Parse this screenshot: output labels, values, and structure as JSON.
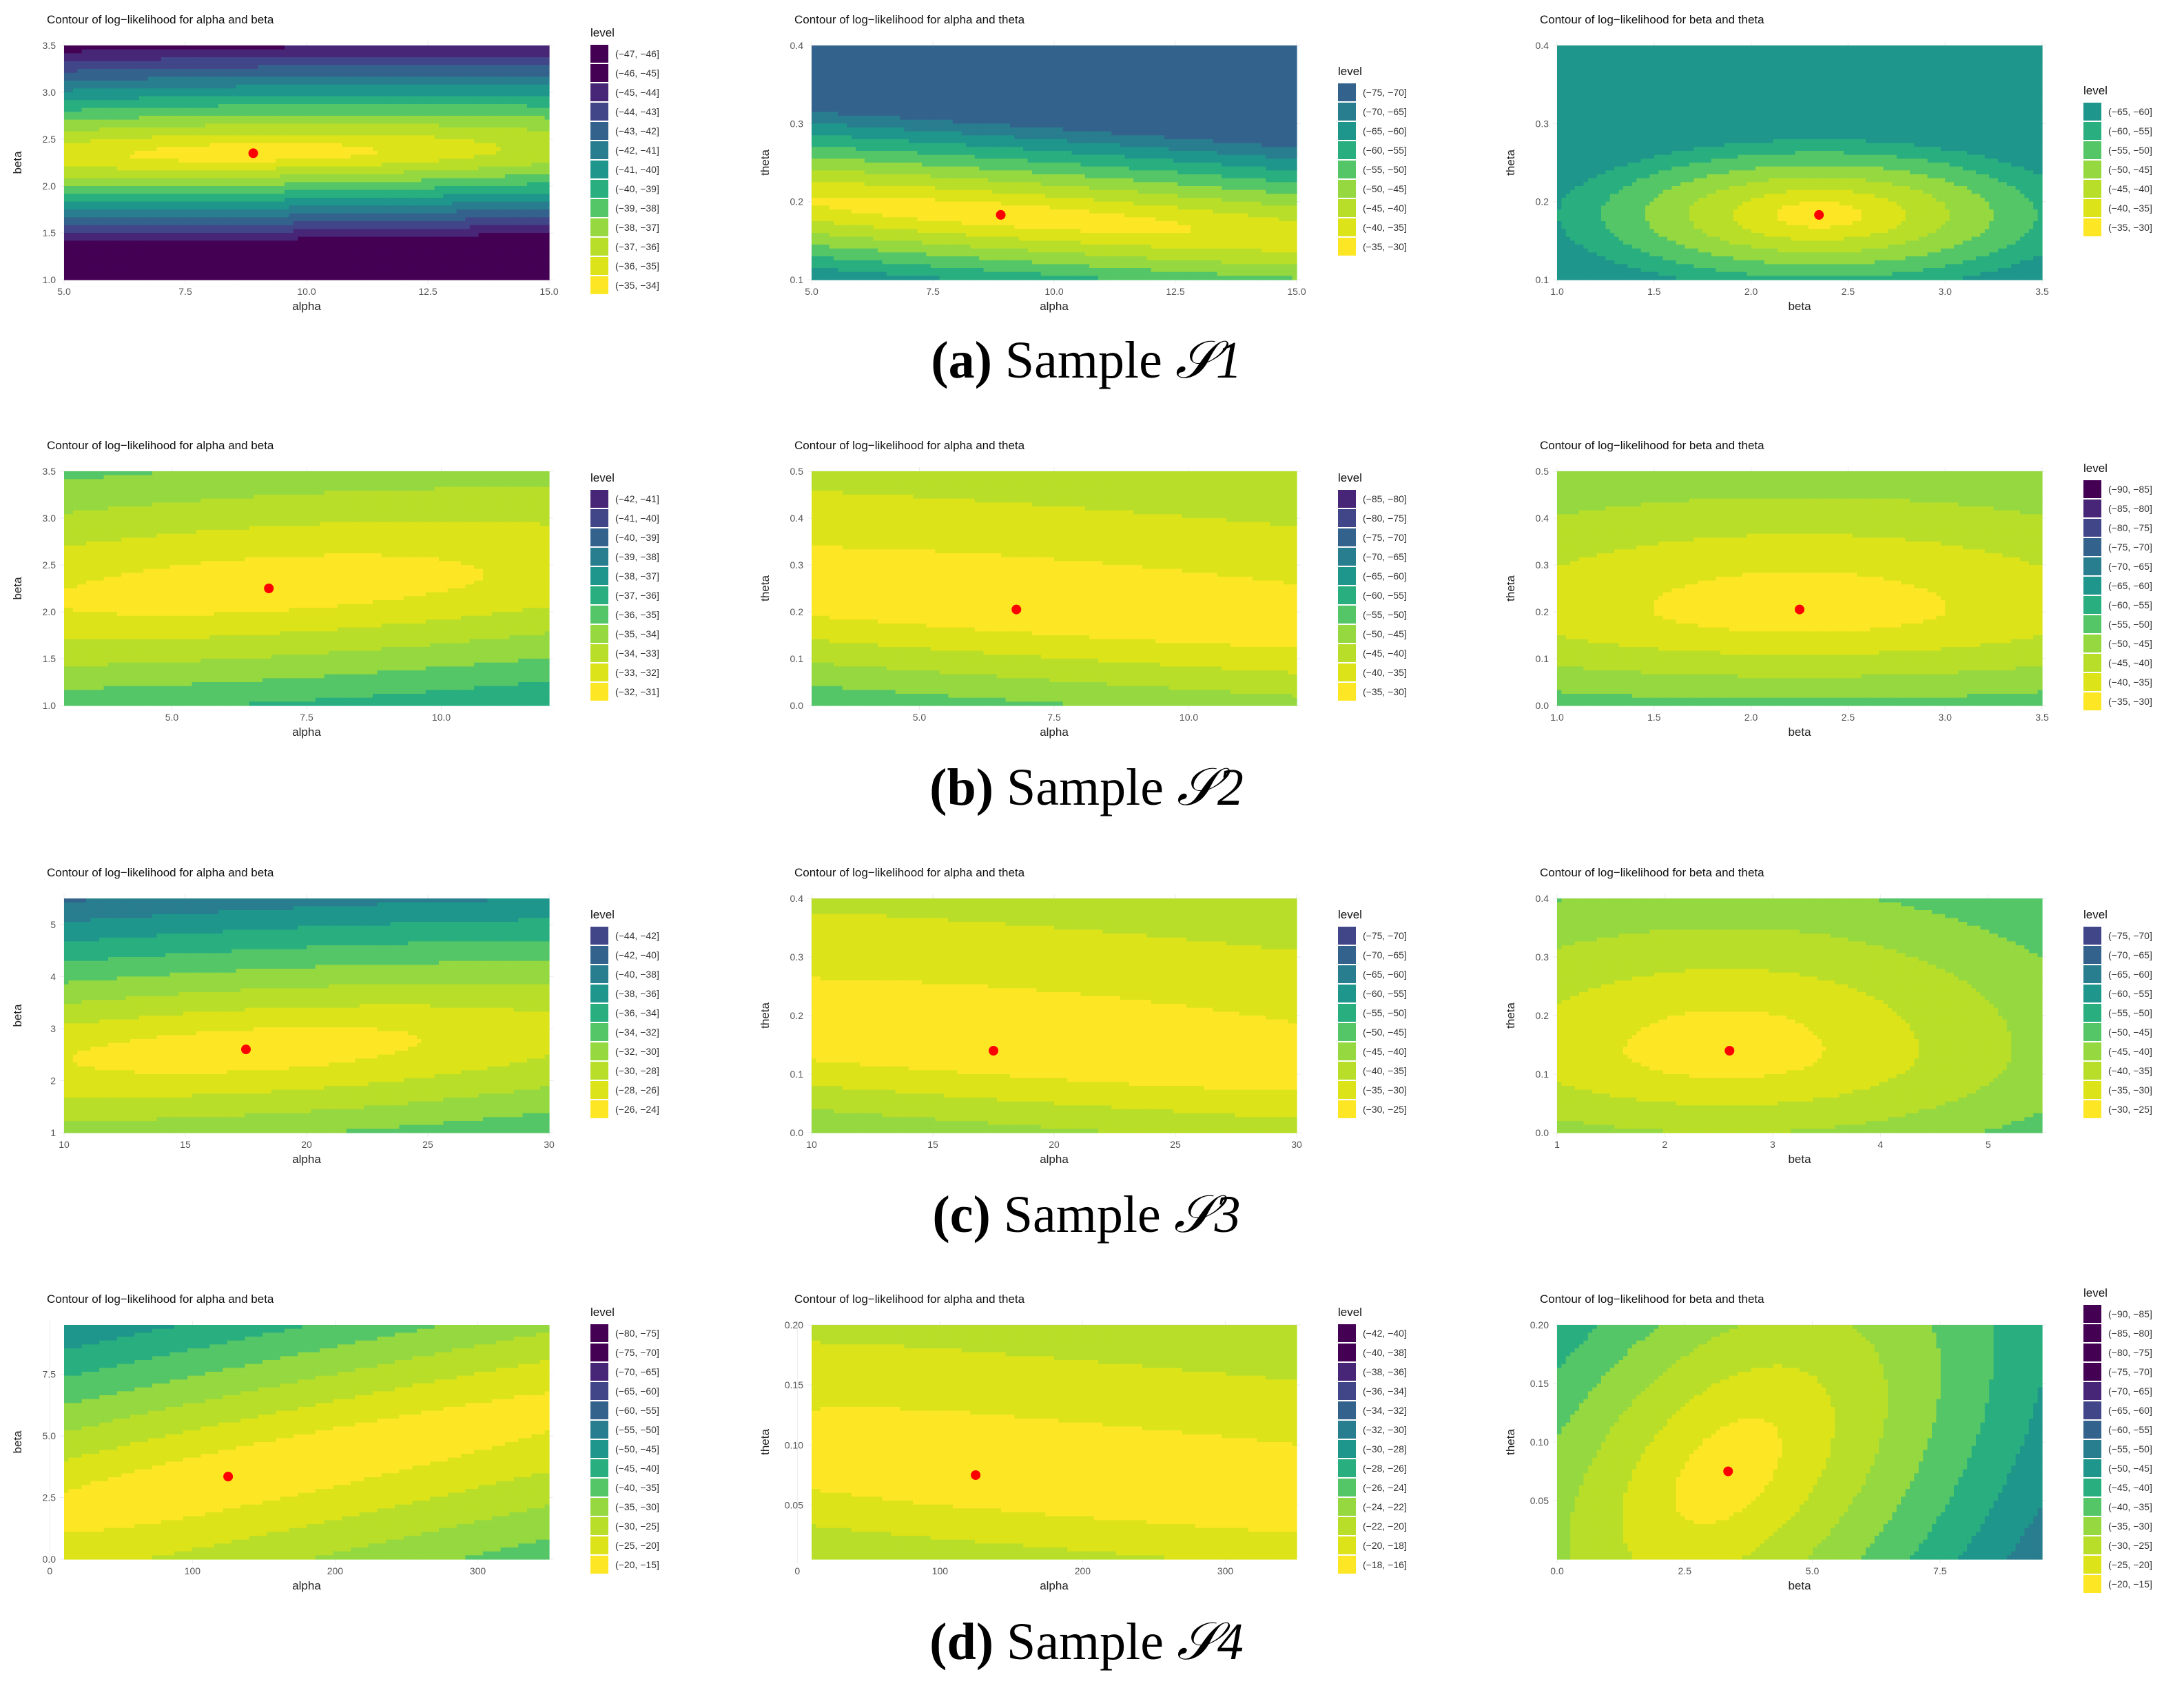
{
  "palette": [
    "#440154",
    "#482677",
    "#404688",
    "#33638D",
    "#287D8E",
    "#1F968B",
    "#29AF7F",
    "#55C667",
    "#95D840",
    "#B8DE29",
    "#DCE319",
    "#FDE725"
  ],
  "marker_color": "#FF0000",
  "captions": [
    {
      "letter": "(a)",
      "text": " Sample ",
      "symbol": "𝒮1"
    },
    {
      "letter": "(b)",
      "text": " Sample ",
      "symbol": "𝒮2"
    },
    {
      "letter": "(c)",
      "text": " Sample ",
      "symbol": "𝒮3"
    },
    {
      "letter": "(d)",
      "text": " Sample ",
      "symbol": "𝒮4"
    }
  ],
  "chart_data": [
    {
      "row": 0,
      "col": 0,
      "type": "contour",
      "title": "Contour of log−likelihood for alpha and beta",
      "xlabel": "alpha",
      "ylabel": "beta",
      "xlim": [
        5,
        15
      ],
      "ylim": [
        1.0,
        3.5
      ],
      "xticks": [
        "5.0",
        "7.5",
        "10.0",
        "12.5",
        "15.0"
      ],
      "xtick_values": [
        5,
        7.5,
        10,
        12.5,
        15
      ],
      "yticks": [
        "1.0",
        "1.5",
        "2.0",
        "2.5",
        "3.0",
        "3.5"
      ],
      "ytick_values": [
        1,
        1.5,
        2,
        2.5,
        3,
        3.5
      ],
      "mle": [
        8.9,
        2.35
      ],
      "ax": 3.2,
      "ay": 0.115,
      "bias_x": 0.0,
      "bias_y": -0.1,
      "tilt": 0.008,
      "legend_title": "level",
      "levels": [
        "(−47, −46]",
        "(−46, −45]",
        "(−45, −44]",
        "(−44, −43]",
        "(−43, −42]",
        "(−42, −41]",
        "(−41, −40]",
        "(−40, −39]",
        "(−39, −38]",
        "(−38, −37]",
        "(−37, −36]",
        "(−36, −35]",
        "(−35, −34]"
      ]
    },
    {
      "row": 0,
      "col": 1,
      "type": "contour",
      "title": "Contour of log−likelihood for alpha and theta",
      "xlabel": "alpha",
      "ylabel": "theta",
      "xlim": [
        5,
        15
      ],
      "ylim": [
        0.1,
        0.4
      ],
      "xticks": [
        "5.0",
        "7.5",
        "10.0",
        "12.5",
        "15.0"
      ],
      "xtick_values": [
        5,
        7.5,
        10,
        12.5,
        15
      ],
      "yticks": [
        "0.1",
        "0.2",
        "0.3",
        "0.4"
      ],
      "ytick_values": [
        0.1,
        0.2,
        0.3,
        0.4
      ],
      "mle": [
        8.9,
        0.183
      ],
      "ax": 5.0,
      "ay": 0.018,
      "bias_x": 0.0,
      "bias_y": 0.0,
      "tilt": -0.0045,
      "legend_title": "level",
      "levels": [
        "(−75, −70]",
        "(−70, −65]",
        "(−65, −60]",
        "(−60, −55]",
        "(−55, −50]",
        "(−50, −45]",
        "(−45, −40]",
        "(−40, −35]",
        "(−35, −30]"
      ]
    },
    {
      "row": 0,
      "col": 2,
      "type": "contour",
      "title": "Contour of log−likelihood for beta and theta",
      "xlabel": "beta",
      "ylabel": "theta",
      "xlim": [
        1.0,
        3.5
      ],
      "ylim": [
        0.1,
        0.4
      ],
      "xticks": [
        "1.0",
        "1.5",
        "2.0",
        "2.5",
        "3.0",
        "3.5"
      ],
      "xtick_values": [
        1,
        1.5,
        2,
        2.5,
        3,
        3.5
      ],
      "yticks": [
        "0.1",
        "0.2",
        "0.3",
        "0.4"
      ],
      "ytick_values": [
        0.1,
        0.2,
        0.3,
        0.4
      ],
      "mle": [
        2.35,
        0.183
      ],
      "ax": 0.28,
      "ay": 0.02,
      "bias_x": 0.0,
      "bias_y": 0.0,
      "tilt": 0.0,
      "legend_title": "level",
      "levels": [
        "(−65, −60]",
        "(−60, −55]",
        "(−55, −50]",
        "(−50, −45]",
        "(−45, −40]",
        "(−40, −35]",
        "(−35, −30]"
      ]
    },
    {
      "row": 1,
      "col": 0,
      "type": "contour",
      "title": "Contour of log−likelihood for alpha and beta",
      "xlabel": "alpha",
      "ylabel": "beta",
      "xlim": [
        3,
        12
      ],
      "ylim": [
        1.0,
        3.5
      ],
      "xticks": [
        "5.0",
        "7.5",
        "10.0"
      ],
      "xtick_values": [
        5,
        7.5,
        10
      ],
      "yticks": [
        "1.0",
        "1.5",
        "2.0",
        "2.5",
        "3.0",
        "3.5"
      ],
      "ytick_values": [
        1,
        1.5,
        2,
        2.5,
        3,
        3.5
      ],
      "mle": [
        6.8,
        2.25
      ],
      "ax": 5.0,
      "ay": 0.35,
      "bias_x": 0.0,
      "bias_y": -0.15,
      "tilt": 0.035,
      "legend_title": "level",
      "levels": [
        "(−42, −41]",
        "(−41, −40]",
        "(−40, −39]",
        "(−39, −38]",
        "(−38, −37]",
        "(−37, −36]",
        "(−36, −35]",
        "(−35, −34]",
        "(−34, −33]",
        "(−33, −32]",
        "(−32, −31]"
      ]
    },
    {
      "row": 1,
      "col": 1,
      "type": "contour",
      "title": "Contour of log−likelihood for alpha and theta",
      "xlabel": "alpha",
      "ylabel": "theta",
      "xlim": [
        3,
        12
      ],
      "ylim": [
        0.0,
        0.5
      ],
      "xticks": [
        "5.0",
        "7.5",
        "10.0"
      ],
      "xtick_values": [
        5,
        7.5,
        10
      ],
      "yticks": [
        "0.0",
        "0.1",
        "0.2",
        "0.3",
        "0.4",
        "0.5"
      ],
      "ytick_values": [
        0,
        0.1,
        0.2,
        0.3,
        0.4,
        0.5
      ],
      "mle": [
        6.8,
        0.205
      ],
      "ax": 12.0,
      "ay": 0.085,
      "bias_x": 0.0,
      "bias_y": -0.4,
      "tilt": -0.008,
      "legend_title": "level",
      "levels": [
        "(−85, −80]",
        "(−80, −75]",
        "(−75, −70]",
        "(−70, −65]",
        "(−65, −60]",
        "(−60, −55]",
        "(−55, −50]",
        "(−50, −45]",
        "(−45, −40]",
        "(−40, −35]",
        "(−35, −30]"
      ]
    },
    {
      "row": 1,
      "col": 2,
      "type": "contour",
      "title": "Contour of log−likelihood for beta and theta",
      "xlabel": "beta",
      "ylabel": "theta",
      "xlim": [
        1.0,
        3.5
      ],
      "ylim": [
        0.0,
        0.5
      ],
      "xticks": [
        "1.0",
        "1.5",
        "2.0",
        "2.5",
        "3.0",
        "3.5"
      ],
      "xtick_values": [
        1,
        1.5,
        2,
        2.5,
        3,
        3.5
      ],
      "yticks": [
        "0.0",
        "0.1",
        "0.2",
        "0.3",
        "0.4",
        "0.5"
      ],
      "ytick_values": [
        0,
        0.1,
        0.2,
        0.3,
        0.4,
        0.5
      ],
      "mle": [
        2.25,
        0.205
      ],
      "ax": 0.95,
      "ay": 0.075,
      "bias_x": 0.0,
      "bias_y": -0.25,
      "tilt": 0.0,
      "legend_title": "level",
      "levels": [
        "(−90, −85]",
        "(−85, −80]",
        "(−80, −75]",
        "(−75, −70]",
        "(−70, −65]",
        "(−65, −60]",
        "(−60, −55]",
        "(−55, −50]",
        "(−50, −45]",
        "(−45, −40]",
        "(−40, −35]",
        "(−35, −30]"
      ]
    },
    {
      "row": 2,
      "col": 0,
      "type": "contour",
      "title": "Contour of log−likelihood for alpha and beta",
      "xlabel": "alpha",
      "ylabel": "beta",
      "xlim": [
        10,
        30
      ],
      "ylim": [
        1,
        5.5
      ],
      "xticks": [
        "10",
        "15",
        "20",
        "25",
        "30"
      ],
      "xtick_values": [
        10,
        15,
        20,
        25,
        30
      ],
      "yticks": [
        "1",
        "2",
        "3",
        "4",
        "5"
      ],
      "ytick_values": [
        1,
        2,
        3,
        4,
        5
      ],
      "mle": [
        17.5,
        2.6
      ],
      "ax": 9.0,
      "ay": 0.5,
      "bias_x": 0.0,
      "bias_y": 0.05,
      "tilt": 0.025,
      "legend_title": "level",
      "levels": [
        "(−44, −42]",
        "(−42, −40]",
        "(−40, −38]",
        "(−38, −36]",
        "(−36, −34]",
        "(−34, −32]",
        "(−32, −30]",
        "(−30, −28]",
        "(−28, −26]",
        "(−26, −24]"
      ]
    },
    {
      "row": 2,
      "col": 1,
      "type": "contour",
      "title": "Contour of log−likelihood for alpha and theta",
      "xlabel": "alpha",
      "ylabel": "theta",
      "xlim": [
        10,
        30
      ],
      "ylim": [
        0.0,
        0.4
      ],
      "xticks": [
        "10",
        "15",
        "20",
        "25",
        "30"
      ],
      "xtick_values": [
        10,
        15,
        20,
        25,
        30
      ],
      "yticks": [
        "0.0",
        "0.1",
        "0.2",
        "0.3",
        "0.4"
      ],
      "ytick_values": [
        0,
        0.1,
        0.2,
        0.3,
        0.4
      ],
      "mle": [
        17.5,
        0.14
      ],
      "ax": 25.0,
      "ay": 0.075,
      "bias_x": 0.0,
      "bias_y": -0.45,
      "tilt": -0.003,
      "legend_title": "level",
      "levels": [
        "(−75, −70]",
        "(−70, −65]",
        "(−65, −60]",
        "(−60, −55]",
        "(−55, −50]",
        "(−50, −45]",
        "(−45, −40]",
        "(−40, −35]",
        "(−35, −30]",
        "(−30, −25]"
      ]
    },
    {
      "row": 2,
      "col": 2,
      "type": "contour",
      "title": "Contour of log−likelihood for beta and theta",
      "xlabel": "beta",
      "ylabel": "theta",
      "xlim": [
        1,
        5.5
      ],
      "ylim": [
        0.0,
        0.4
      ],
      "xticks": [
        "1",
        "2",
        "3",
        "4",
        "5"
      ],
      "xtick_values": [
        1,
        2,
        3,
        4,
        5
      ],
      "yticks": [
        "0.0",
        "0.1",
        "0.2",
        "0.3",
        "0.4"
      ],
      "ytick_values": [
        0,
        0.1,
        0.2,
        0.3,
        0.4
      ],
      "mle": [
        2.6,
        0.14
      ],
      "ax": 1.15,
      "ay": 0.07,
      "bias_x": 0.05,
      "bias_y": -0.2,
      "tilt": 0.0,
      "legend_title": "level",
      "levels": [
        "(−75, −70]",
        "(−70, −65]",
        "(−65, −60]",
        "(−60, −55]",
        "(−55, −50]",
        "(−50, −45]",
        "(−45, −40]",
        "(−40, −35]",
        "(−35, −30]",
        "(−30, −25]"
      ]
    },
    {
      "row": 3,
      "col": 0,
      "type": "contour",
      "title": "Contour of log−likelihood for alpha and beta",
      "xlabel": "alpha",
      "ylabel": "beta",
      "xlim": [
        10,
        350
      ],
      "ylim": [
        0.0,
        9.5
      ],
      "xticks": [
        "0",
        "100",
        "200",
        "300"
      ],
      "xtick_values": [
        0,
        100,
        200,
        300
      ],
      "yticks": [
        "0.0",
        "2.5",
        "5.0",
        "7.5"
      ],
      "ytick_values": [
        0,
        2.5,
        5,
        7.5
      ],
      "mle": [
        125,
        3.35
      ],
      "ax": 260,
      "ay": 1.5,
      "bias_x": -0.3,
      "bias_y": 0.1,
      "tilt": 0.012,
      "legend_title": "level",
      "levels": [
        "(−80, −75]",
        "(−75, −70]",
        "(−70, −65]",
        "(−65, −60]",
        "(−60, −55]",
        "(−55, −50]",
        "(−50, −45]",
        "(−45, −40]",
        "(−40, −35]",
        "(−35, −30]",
        "(−30, −25]",
        "(−25, −20]",
        "(−20, −15]"
      ]
    },
    {
      "row": 3,
      "col": 1,
      "type": "contour",
      "title": "Contour of log−likelihood for alpha and theta",
      "xlabel": "alpha",
      "ylabel": "theta",
      "xlim": [
        10,
        350
      ],
      "ylim": [
        0.005,
        0.2
      ],
      "xticks": [
        "0",
        "100",
        "200",
        "300"
      ],
      "xtick_values": [
        0,
        100,
        200,
        300
      ],
      "yticks": [
        "0.05",
        "0.10",
        "0.15",
        "0.20"
      ],
      "ytick_values": [
        0.05,
        0.1,
        0.15,
        0.2
      ],
      "mle": [
        125,
        0.075
      ],
      "ax": 400,
      "ay": 0.045,
      "bias_x": -0.5,
      "bias_y": -0.3,
      "tilt": -0.0001,
      "legend_title": "level",
      "levels": [
        "(−42, −40]",
        "(−40, −38]",
        "(−38, −36]",
        "(−36, −34]",
        "(−34, −32]",
        "(−32, −30]",
        "(−30, −28]",
        "(−28, −26]",
        "(−26, −24]",
        "(−24, −22]",
        "(−22, −20]",
        "(−20, −18]",
        "(−18, −16]"
      ]
    },
    {
      "row": 3,
      "col": 2,
      "type": "contour",
      "title": "Contour of log−likelihood for beta and theta",
      "xlabel": "beta",
      "ylabel": "theta",
      "xlim": [
        0.0,
        9.5
      ],
      "ylim": [
        0.0,
        0.2
      ],
      "xticks": [
        "0.0",
        "2.5",
        "5.0",
        "7.5"
      ],
      "xtick_values": [
        0,
        2.5,
        5,
        7.5
      ],
      "yticks": [
        "0.05",
        "0.10",
        "0.15",
        "0.20"
      ],
      "ytick_values": [
        0.05,
        0.1,
        0.15,
        0.2
      ],
      "mle": [
        3.35,
        0.075
      ],
      "ax": 1.3,
      "ay": 0.05,
      "bias_x": 0.0,
      "bias_y": 0.0,
      "tilt": 0.02,
      "legend_title": "level",
      "levels": [
        "(−90, −85]",
        "(−85, −80]",
        "(−80, −75]",
        "(−75, −70]",
        "(−70, −65]",
        "(−65, −60]",
        "(−60, −55]",
        "(−55, −50]",
        "(−50, −45]",
        "(−45, −40]",
        "(−40, −35]",
        "(−35, −30]",
        "(−30, −25]",
        "(−25, −20]",
        "(−20, −15]"
      ]
    }
  ]
}
